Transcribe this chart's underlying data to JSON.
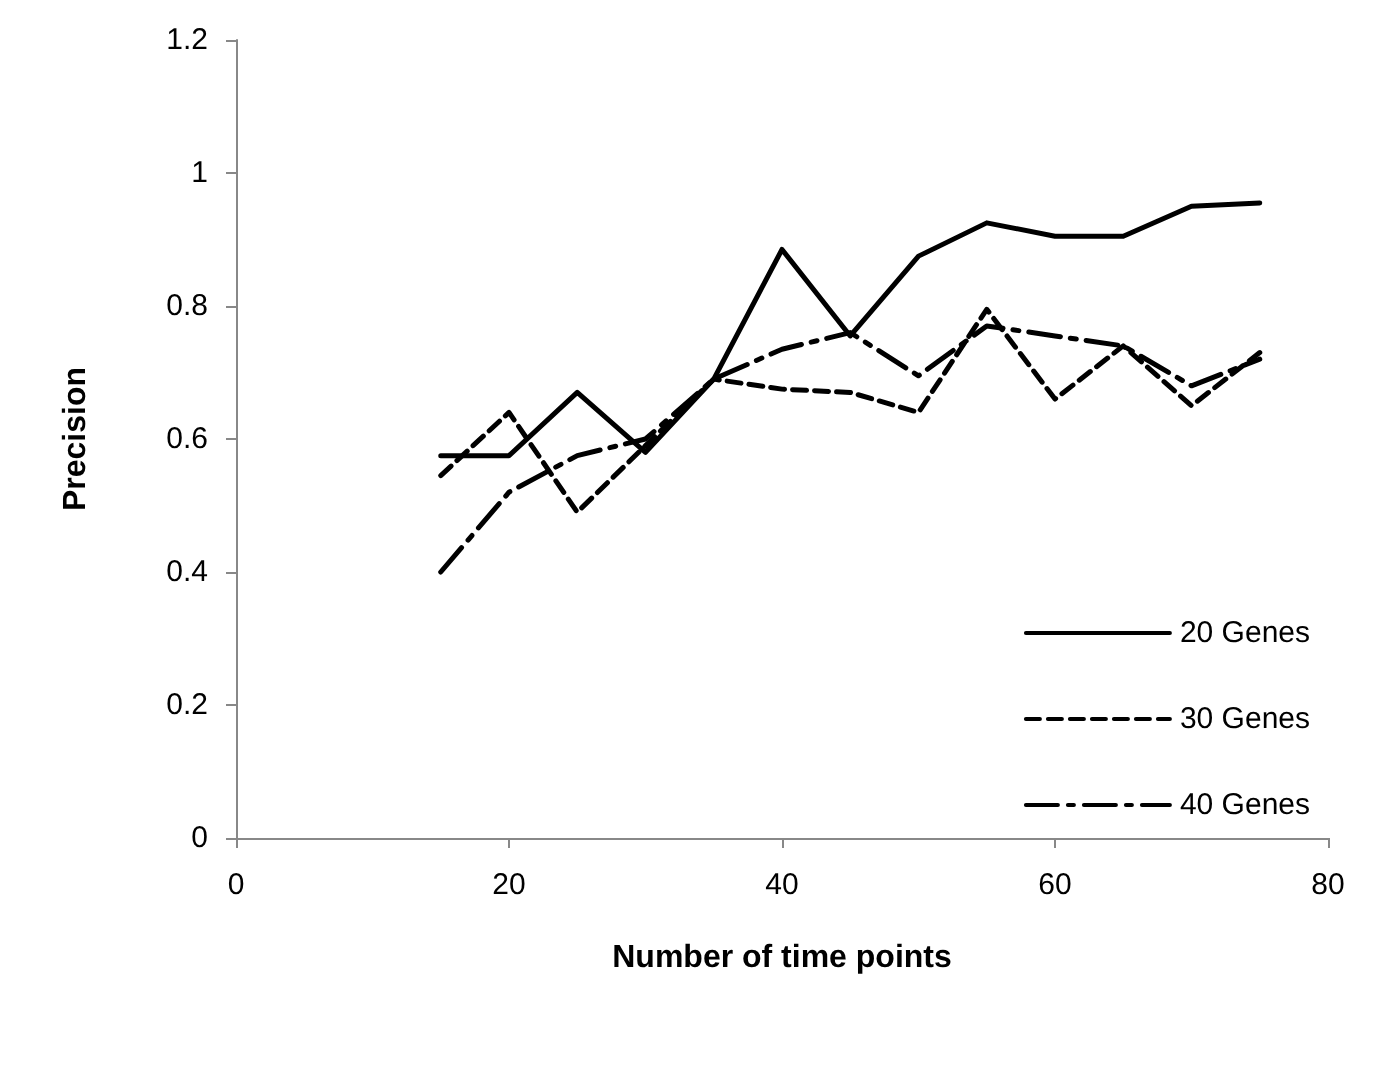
{
  "chart_data": {
    "type": "line",
    "xlabel": "Number of time points",
    "ylabel": "Precision",
    "x": [
      15,
      20,
      25,
      30,
      35,
      40,
      45,
      50,
      55,
      60,
      65,
      70,
      75
    ],
    "series": [
      {
        "name": "20 Genes",
        "color": "#000000",
        "line_style": "solid",
        "values": [
          0.575,
          0.575,
          0.67,
          0.58,
          0.69,
          0.885,
          0.755,
          0.875,
          0.925,
          0.905,
          0.905,
          0.95,
          0.955
        ]
      },
      {
        "name": "30 Genes",
        "color": "#000000",
        "line_style": "dashed",
        "values": [
          0.545,
          0.64,
          0.49,
          0.59,
          0.69,
          0.675,
          0.67,
          0.64,
          0.795,
          0.66,
          0.74,
          0.65,
          0.73
        ]
      },
      {
        "name": "40 Genes",
        "color": "#000000",
        "line_style": "dashdot",
        "values": [
          0.4,
          0.52,
          0.575,
          0.6,
          0.69,
          0.735,
          0.76,
          0.695,
          0.77,
          0.755,
          0.74,
          0.68,
          0.72
        ]
      }
    ],
    "xlim": [
      0,
      80
    ],
    "xticks": [
      0,
      20,
      40,
      60,
      80
    ],
    "ylim": [
      0,
      1.2
    ],
    "yticks": [
      0,
      0.2,
      0.4,
      0.6,
      0.8,
      1,
      1.2
    ],
    "grid": false,
    "legend": "bottom right",
    "marker": "none"
  }
}
